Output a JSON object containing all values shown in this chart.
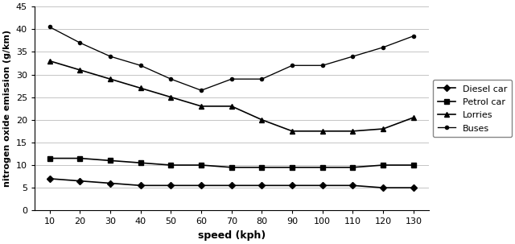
{
  "speed": [
    10,
    20,
    30,
    40,
    50,
    60,
    70,
    80,
    90,
    100,
    110,
    120,
    130
  ],
  "diesel_car": [
    7,
    6.5,
    6,
    5.5,
    5.5,
    5.5,
    5.5,
    5.5,
    5.5,
    5.5,
    5.5,
    5,
    5
  ],
  "petrol_car": [
    11.5,
    11.5,
    11,
    10.5,
    10,
    10,
    9.5,
    9.5,
    9.5,
    9.5,
    9.5,
    10,
    10
  ],
  "lorries": [
    33,
    31,
    29,
    27,
    25,
    23,
    23,
    20,
    17.5,
    17.5,
    17.5,
    18,
    20.5
  ],
  "buses": [
    40.5,
    37,
    34,
    32,
    29,
    26.5,
    29,
    29,
    32,
    32,
    34,
    36,
    38.5
  ],
  "legend_labels": [
    "Diesel car",
    "Petrol car",
    "Lorries",
    "Buses"
  ],
  "xlabel": "speed (kph)",
  "ylabel": "nitrogen oxide emission (g/km)",
  "ylim": [
    0,
    45
  ],
  "xlim": [
    5,
    135
  ],
  "yticks": [
    0,
    5,
    10,
    15,
    20,
    25,
    30,
    35,
    40,
    45
  ],
  "xticks": [
    10,
    20,
    30,
    40,
    50,
    60,
    70,
    80,
    90,
    100,
    110,
    120,
    130
  ],
  "background_color": "#ffffff",
  "line_color": "#000000",
  "marker_size": 4,
  "linewidth": 1.2,
  "diesel_marker": "D",
  "petrol_marker": "s",
  "lorries_marker": "^",
  "buses_marker": "s"
}
